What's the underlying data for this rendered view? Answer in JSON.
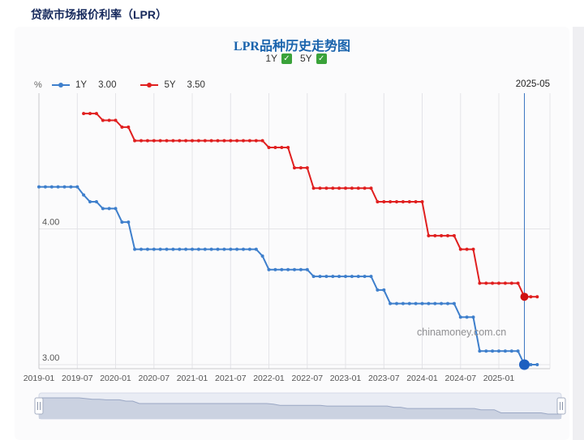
{
  "page": {
    "title": "贷款市场报价利率（LPR）"
  },
  "chart": {
    "title": "LPR品种历史走势图",
    "unit": "%",
    "hover_date": "2025-05",
    "watermark": "chinamoney.com.cn",
    "colors": {
      "checkbox_green": "#3aa23a",
      "title_blue": "#1a64ad",
      "header_navy": "#16295c",
      "crosshair_blue": "#3e78c2"
    },
    "toggles": [
      {
        "label": "1Y",
        "checked": true
      },
      {
        "label": "5Y",
        "checked": true
      }
    ],
    "legend": [
      {
        "label": "1Y",
        "value": "3.00",
        "color": "#3e7fcc"
      },
      {
        "label": "5Y",
        "value": "3.50",
        "color": "#e01f1f"
      }
    ]
  },
  "chart_data": {
    "type": "line",
    "title": "LPR品种历史走势图",
    "x_unit": "month",
    "x_start": "2019-01",
    "x_end": "2025-07",
    "months_total": 79,
    "x_tick_every_months": 6,
    "x_tick_labels": [
      "2019-01",
      "2019-07",
      "2020-01",
      "2020-07",
      "2021-01",
      "2021-07",
      "2022-01",
      "2022-07",
      "2023-01",
      "2023-07",
      "2024-01",
      "2024-07",
      "2025-01"
    ],
    "ylim": [
      2.97,
      5.0
    ],
    "y_ticks": [
      {
        "label": "3.00",
        "value": 3.0
      },
      {
        "label": "4.00",
        "value": 4.0
      }
    ],
    "grid": true,
    "legend_position": "top",
    "hover": {
      "month_index": 76,
      "label": "2025-05",
      "values": {
        "1Y": "3.00",
        "5Y": "3.50"
      }
    },
    "series": [
      {
        "name": "1Y",
        "color": "#3e7fcc",
        "hover_color": "#1d5fc0",
        "values": [
          4.31,
          4.31,
          4.31,
          4.31,
          4.31,
          4.31,
          4.31,
          4.25,
          4.2,
          4.2,
          4.15,
          4.15,
          4.15,
          4.05,
          4.05,
          3.85,
          3.85,
          3.85,
          3.85,
          3.85,
          3.85,
          3.85,
          3.85,
          3.85,
          3.85,
          3.85,
          3.85,
          3.85,
          3.85,
          3.85,
          3.85,
          3.85,
          3.85,
          3.85,
          3.85,
          3.8,
          3.7,
          3.7,
          3.7,
          3.7,
          3.7,
          3.7,
          3.7,
          3.65,
          3.65,
          3.65,
          3.65,
          3.65,
          3.65,
          3.65,
          3.65,
          3.65,
          3.65,
          3.55,
          3.55,
          3.45,
          3.45,
          3.45,
          3.45,
          3.45,
          3.45,
          3.45,
          3.45,
          3.45,
          3.45,
          3.45,
          3.35,
          3.35,
          3.35,
          3.1,
          3.1,
          3.1,
          3.1,
          3.1,
          3.1,
          3.1,
          3.0,
          3.0,
          3.0
        ]
      },
      {
        "name": "5Y",
        "color": "#e01f1f",
        "hover_color": "#cf1111",
        "values": [
          null,
          null,
          null,
          null,
          null,
          null,
          null,
          4.85,
          4.85,
          4.85,
          4.8,
          4.8,
          4.8,
          4.75,
          4.75,
          4.65,
          4.65,
          4.65,
          4.65,
          4.65,
          4.65,
          4.65,
          4.65,
          4.65,
          4.65,
          4.65,
          4.65,
          4.65,
          4.65,
          4.65,
          4.65,
          4.65,
          4.65,
          4.65,
          4.65,
          4.65,
          4.6,
          4.6,
          4.6,
          4.6,
          4.45,
          4.45,
          4.45,
          4.3,
          4.3,
          4.3,
          4.3,
          4.3,
          4.3,
          4.3,
          4.3,
          4.3,
          4.3,
          4.2,
          4.2,
          4.2,
          4.2,
          4.2,
          4.2,
          4.2,
          4.2,
          3.95,
          3.95,
          3.95,
          3.95,
          3.95,
          3.85,
          3.85,
          3.85,
          3.6,
          3.6,
          3.6,
          3.6,
          3.6,
          3.6,
          3.6,
          3.5,
          3.5,
          3.5
        ]
      }
    ]
  }
}
